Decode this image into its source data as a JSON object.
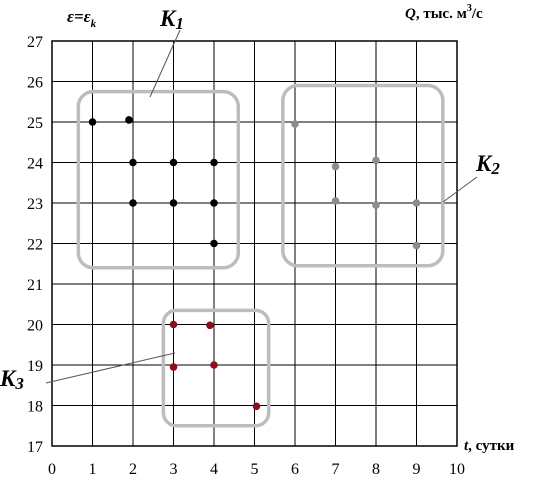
{
  "chart_data": {
    "type": "scatter",
    "xlim": [
      0,
      10
    ],
    "ylim": [
      17,
      27
    ],
    "grid": true,
    "x_ticks": [
      "0",
      "1",
      "2",
      "3",
      "4",
      "5",
      "6",
      "7",
      "8",
      "9",
      "10"
    ],
    "y_ticks": [
      "17",
      "18",
      "19",
      "20",
      "21",
      "22",
      "23",
      "24",
      "25",
      "26",
      "27"
    ],
    "ylabel": {
      "eps1": "ε",
      "eq": "=",
      "eps2": "ε",
      "sub": "k"
    },
    "ylabel_right": {
      "q": "Q",
      "text": ", тыс. м",
      "sup": "3",
      "unit": "/с"
    },
    "xlabel": {
      "t": "t",
      "text": ", сутки"
    },
    "series": [
      {
        "name": "K1",
        "name_main": "K",
        "name_sub": "1",
        "color": "#000000",
        "points": [
          [
            1,
            25
          ],
          [
            1.9,
            25.05
          ],
          [
            2,
            24
          ],
          [
            3,
            24
          ],
          [
            4,
            24
          ],
          [
            2,
            23
          ],
          [
            3,
            23
          ],
          [
            4,
            23
          ],
          [
            4,
            22
          ]
        ]
      },
      {
        "name": "K2",
        "name_main": "K",
        "name_sub": "2",
        "color": "#8c8c8c",
        "points": [
          [
            6,
            24.95
          ],
          [
            7,
            23.9
          ],
          [
            8,
            24.05
          ],
          [
            7,
            23.05
          ],
          [
            8,
            22.95
          ],
          [
            9,
            23
          ],
          [
            9,
            21.95
          ]
        ]
      },
      {
        "name": "K3",
        "name_main": "K",
        "name_sub": "3",
        "color": "#8b0f1f",
        "points": [
          [
            3,
            20
          ],
          [
            3.9,
            19.98
          ],
          [
            3,
            18.95
          ],
          [
            4,
            19
          ],
          [
            5.05,
            17.98
          ]
        ]
      }
    ]
  }
}
